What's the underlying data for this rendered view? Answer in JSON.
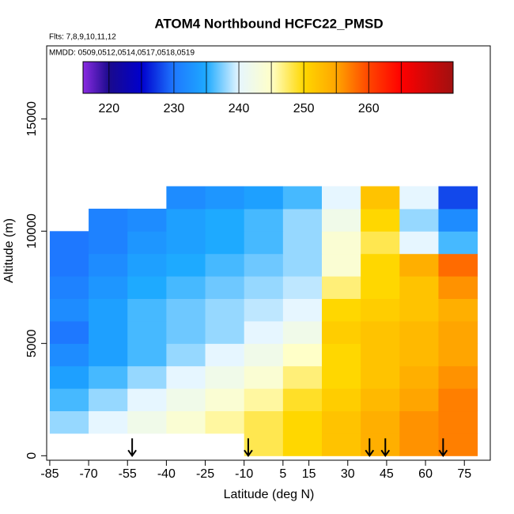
{
  "chart_data": {
    "type": "heatmap",
    "title": "ATOM4 Northbound HCFC22_PMSD",
    "notes": [
      "Flts: 7,8,9,10,11,12",
      "MMDD: 0509,0512,0514,0517,0518,0519"
    ],
    "x_label": "Latitude (deg N)",
    "y_label": "Altitude (m)",
    "xlim": [
      -86.2,
      85
    ],
    "ylim": [
      -200,
      18250
    ],
    "xticks": [
      -85,
      -70,
      -55,
      -40,
      -25,
      -10,
      5,
      15,
      30,
      45,
      60,
      75
    ],
    "yticks": [
      0,
      5000,
      10000,
      15000
    ],
    "lat_bins": [
      -85,
      -70,
      -55,
      -40,
      -25,
      -10,
      5,
      20,
      35,
      50,
      65,
      80
    ],
    "alt_bins": [
      0,
      1000,
      2000,
      3000,
      4000,
      5000,
      6000,
      7000,
      8000,
      9000,
      10000,
      11000,
      12000
    ],
    "values": [
      [
        null,
        null,
        null,
        null,
        null,
        248,
        250,
        252,
        254,
        256,
        257
      ],
      [
        238,
        240,
        242,
        244,
        246,
        248,
        250,
        252,
        254,
        256,
        257
      ],
      [
        236,
        238,
        240,
        242,
        244,
        246,
        249,
        251,
        253,
        255,
        257
      ],
      [
        234,
        236,
        238,
        240,
        242,
        244,
        247,
        250,
        252,
        254,
        256
      ],
      [
        232,
        234,
        236,
        238,
        240,
        242,
        245,
        250,
        252,
        253,
        255
      ],
      [
        230,
        234,
        236,
        237,
        238,
        240,
        242,
        251,
        252,
        253,
        255
      ],
      [
        232,
        234,
        236,
        237,
        238,
        239,
        240,
        250,
        251,
        252,
        254
      ],
      [
        231,
        233,
        235,
        236,
        237,
        238,
        239,
        247,
        250,
        252,
        256
      ],
      [
        230,
        232,
        234,
        235,
        236,
        237,
        238,
        244,
        250,
        254,
        258
      ],
      [
        230,
        231,
        233,
        234,
        235,
        236,
        238,
        244,
        248,
        240,
        236
      ],
      [
        null,
        231,
        232,
        234,
        235,
        236,
        238,
        242,
        250,
        238,
        232
      ],
      [
        null,
        null,
        null,
        232,
        233,
        234,
        236,
        240,
        252,
        240,
        228
      ]
    ],
    "arrows_x": [
      -53.2,
      -8.4,
      38.4,
      44.5,
      66.8
    ],
    "colorbar_lim": [
      216,
      273
    ],
    "colorbar_ticks": [
      220,
      230,
      240,
      250,
      260
    ],
    "color_stops": [
      {
        "value": 216,
        "color": "#8a2be2"
      },
      {
        "value": 220,
        "color": "#1a0a8c"
      },
      {
        "value": 225,
        "color": "#0000cd"
      },
      {
        "value": 230,
        "color": "#1e78ff"
      },
      {
        "value": 235,
        "color": "#1eaaff"
      },
      {
        "value": 240,
        "color": "#e6f6ff"
      },
      {
        "value": 245,
        "color": "#ffffc8"
      },
      {
        "value": 250,
        "color": "#ffd700"
      },
      {
        "value": 255,
        "color": "#ffa500"
      },
      {
        "value": 260,
        "color": "#ff4500"
      },
      {
        "value": 265,
        "color": "#ff0000"
      },
      {
        "value": 273,
        "color": "#a01010"
      }
    ]
  }
}
